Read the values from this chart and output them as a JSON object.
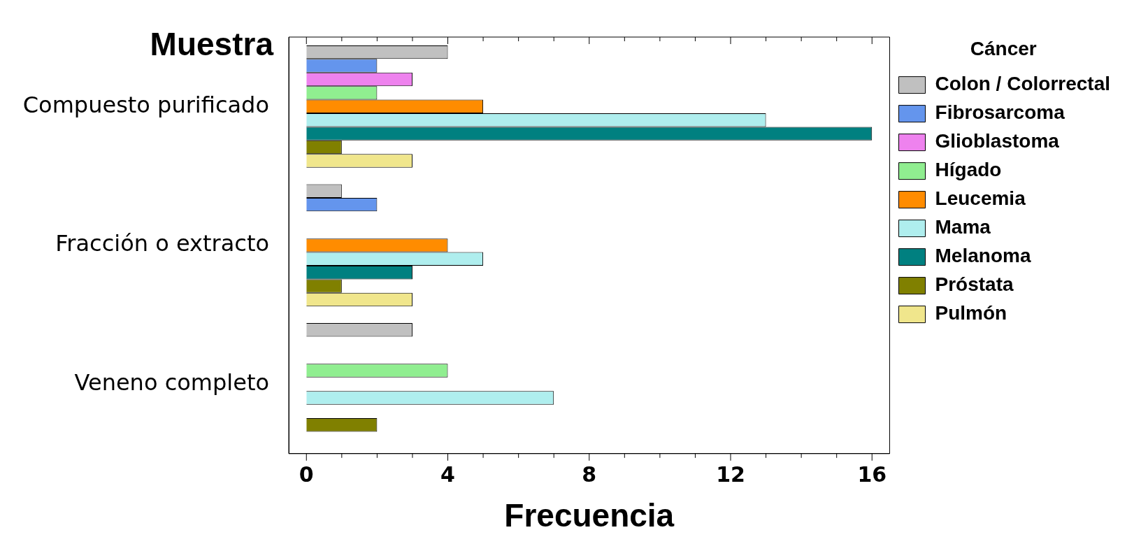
{
  "chart_data": {
    "type": "bar",
    "orientation": "horizontal",
    "ylabel": "Muestra",
    "xlabel": "Frecuencia",
    "legend_title": "Cáncer",
    "legend": "top right",
    "grid": false,
    "categories": [
      "Compuesto purificado",
      "Fracción o extracto",
      "Veneno completo"
    ],
    "xlim": [
      -0.5,
      16.5
    ],
    "xticks": [
      0,
      {
        "value": 1,
        "label": null
      },
      {
        "value": 2,
        "label": null
      },
      {
        "value": 3,
        "label": null
      },
      4,
      {
        "value": 5,
        "label": null
      },
      {
        "value": 6,
        "label": null
      },
      {
        "value": 7,
        "label": null
      },
      8,
      {
        "value": 9,
        "label": null
      },
      {
        "value": 10,
        "label": null
      },
      {
        "value": 11,
        "label": null
      },
      12,
      {
        "value": 13,
        "label": null
      },
      {
        "value": 14,
        "label": null
      },
      {
        "value": 15,
        "label": null
      },
      16
    ],
    "series": [
      {
        "name": "Colon / Colorrectal",
        "color": "#c0c0c0",
        "values": [
          4,
          1,
          3
        ]
      },
      {
        "name": "Fibrosarcoma",
        "color": "#6495ed",
        "values": [
          2,
          2,
          null
        ]
      },
      {
        "name": "Glioblastoma",
        "color": "#ee82ee",
        "values": [
          3,
          null,
          null
        ]
      },
      {
        "name": "Hígado",
        "color": "#90ee90",
        "values": [
          2,
          null,
          4
        ]
      },
      {
        "name": "Leucemia",
        "color": "#ff8c00",
        "values": [
          5,
          4,
          null
        ]
      },
      {
        "name": "Mama",
        "color": "#afeeee",
        "values": [
          13,
          5,
          7
        ]
      },
      {
        "name": "Melanoma",
        "color": "#008080",
        "values": [
          16,
          3,
          null
        ]
      },
      {
        "name": "Próstata",
        "color": "#808000",
        "values": [
          1,
          1,
          2
        ]
      },
      {
        "name": "Pulmón",
        "color": "#f0e68c",
        "values": [
          3,
          3,
          null
        ]
      }
    ]
  }
}
